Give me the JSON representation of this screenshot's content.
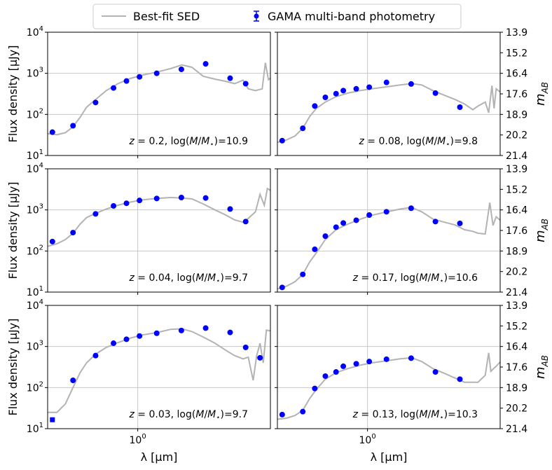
{
  "legend": {
    "sed_label": "Best-fit SED",
    "phot_label": "GAMA multi-band photometry"
  },
  "colors": {
    "sed": "#b3b3b3",
    "photometry": "#0000ff",
    "grid": "#c8c8c8"
  },
  "labels": {
    "ylabel": "Flux density [μJy]",
    "xlabel": "λ [μm]",
    "mab": "m",
    "mab_sub": "AB"
  },
  "chart_data": {
    "type": "scatter",
    "title": "",
    "xscale": "log",
    "yscale": "log",
    "xlim": [
      0.36,
      4.5
    ],
    "ylim": [
      10,
      10000
    ],
    "xticks": [
      {
        "value": 1,
        "base": "10",
        "exp": "0"
      }
    ],
    "yticks": [
      {
        "value": 10,
        "base": "10",
        "exp": "1"
      },
      {
        "value": 100,
        "base": "10",
        "exp": "2"
      },
      {
        "value": 1000,
        "base": "10",
        "exp": "3"
      },
      {
        "value": 10000,
        "base": "10",
        "exp": "4"
      }
    ],
    "secondary_yticks": [
      "13.9",
      "15.2",
      "16.4",
      "17.6",
      "18.9",
      "20.2",
      "21.4"
    ],
    "photometry_wavelengths": [
      0.38,
      0.48,
      0.62,
      0.76,
      0.88,
      1.02,
      1.24,
      1.64,
      2.16,
      2.85
    ],
    "panels": [
      {
        "z": "0.2",
        "logm": "10.9",
        "flux": [
          37,
          53,
          195,
          440,
          650,
          820,
          1000,
          1250,
          1700,
          760,
          560
        ],
        "wave": [
          0.38,
          0.48,
          0.62,
          0.76,
          0.88,
          1.02,
          1.24,
          1.64,
          2.16,
          2.85,
          3.4
        ],
        "sed": [
          [
            0.36,
            34
          ],
          [
            0.4,
            32
          ],
          [
            0.44,
            36
          ],
          [
            0.48,
            50
          ],
          [
            0.52,
            85
          ],
          [
            0.56,
            150
          ],
          [
            0.62,
            230
          ],
          [
            0.7,
            380
          ],
          [
            0.8,
            560
          ],
          [
            0.92,
            750
          ],
          [
            1.05,
            900
          ],
          [
            1.25,
            1080
          ],
          [
            1.45,
            1300
          ],
          [
            1.65,
            1600
          ],
          [
            1.85,
            1400
          ],
          [
            2.1,
            850
          ],
          [
            2.4,
            720
          ],
          [
            2.7,
            640
          ],
          [
            3.0,
            560
          ],
          [
            3.3,
            680
          ],
          [
            3.5,
            420
          ],
          [
            3.8,
            380
          ],
          [
            4.1,
            420
          ],
          [
            4.25,
            1800
          ],
          [
            4.4,
            700
          ],
          [
            4.5,
            760
          ]
        ]
      },
      {
        "z": "0.08",
        "logm": "9.8",
        "flux": [
          23,
          46,
          160,
          260,
          320,
          380,
          420,
          460,
          600,
          550,
          330,
          150
        ],
        "wave": [
          0.38,
          0.48,
          0.55,
          0.62,
          0.7,
          0.76,
          0.88,
          1.02,
          1.24,
          1.64,
          2.16,
          2.85
        ],
        "sed": [
          [
            0.36,
            21
          ],
          [
            0.4,
            24
          ],
          [
            0.44,
            30
          ],
          [
            0.48,
            46
          ],
          [
            0.52,
            90
          ],
          [
            0.56,
            140
          ],
          [
            0.62,
            200
          ],
          [
            0.7,
            270
          ],
          [
            0.8,
            330
          ],
          [
            0.92,
            380
          ],
          [
            1.05,
            420
          ],
          [
            1.25,
            470
          ],
          [
            1.45,
            520
          ],
          [
            1.65,
            560
          ],
          [
            1.85,
            520
          ],
          [
            2.1,
            380
          ],
          [
            2.4,
            290
          ],
          [
            2.7,
            230
          ],
          [
            3.0,
            180
          ],
          [
            3.3,
            130
          ],
          [
            3.5,
            160
          ],
          [
            3.8,
            200
          ],
          [
            3.95,
            110
          ],
          [
            4.1,
            500
          ],
          [
            4.2,
            140
          ],
          [
            4.3,
            420
          ],
          [
            4.5,
            350
          ]
        ]
      },
      {
        "z": "0.04",
        "logm": "9.7",
        "flux": [
          170,
          280,
          800,
          1250,
          1450,
          1700,
          1900,
          2000,
          1950,
          1050,
          520
        ],
        "wave": [
          0.38,
          0.48,
          0.62,
          0.76,
          0.88,
          1.02,
          1.24,
          1.64,
          2.16,
          2.85,
          3.4
        ],
        "sed": [
          [
            0.36,
            130
          ],
          [
            0.4,
            150
          ],
          [
            0.44,
            190
          ],
          [
            0.48,
            270
          ],
          [
            0.52,
            450
          ],
          [
            0.56,
            650
          ],
          [
            0.62,
            820
          ],
          [
            0.7,
            1050
          ],
          [
            0.8,
            1300
          ],
          [
            0.92,
            1550
          ],
          [
            1.05,
            1750
          ],
          [
            1.25,
            1900
          ],
          [
            1.45,
            2000
          ],
          [
            1.65,
            1950
          ],
          [
            1.85,
            1850
          ],
          [
            2.1,
            1400
          ],
          [
            2.4,
            1000
          ],
          [
            2.7,
            760
          ],
          [
            3.0,
            570
          ],
          [
            3.3,
            500
          ],
          [
            3.5,
            620
          ],
          [
            3.8,
            900
          ],
          [
            4.0,
            2400
          ],
          [
            4.2,
            1300
          ],
          [
            4.35,
            3300
          ],
          [
            4.5,
            3000
          ]
        ]
      },
      {
        "z": "0.17",
        "logm": "10.6",
        "flux": [
          13,
          27,
          110,
          230,
          380,
          480,
          560,
          750,
          900,
          1100,
          520,
          470
        ],
        "wave": [
          0.38,
          0.48,
          0.55,
          0.62,
          0.7,
          0.76,
          0.88,
          1.02,
          1.24,
          1.64,
          2.16,
          2.85
        ],
        "sed": [
          [
            0.36,
            12
          ],
          [
            0.4,
            14
          ],
          [
            0.44,
            18
          ],
          [
            0.48,
            27
          ],
          [
            0.52,
            55
          ],
          [
            0.56,
            90
          ],
          [
            0.62,
            190
          ],
          [
            0.7,
            330
          ],
          [
            0.8,
            450
          ],
          [
            0.92,
            590
          ],
          [
            1.05,
            740
          ],
          [
            1.25,
            900
          ],
          [
            1.45,
            1050
          ],
          [
            1.65,
            1150
          ],
          [
            1.85,
            900
          ],
          [
            2.1,
            600
          ],
          [
            2.4,
            500
          ],
          [
            2.7,
            430
          ],
          [
            3.0,
            330
          ],
          [
            3.3,
            300
          ],
          [
            3.5,
            270
          ],
          [
            3.8,
            260
          ],
          [
            4.0,
            1500
          ],
          [
            4.15,
            420
          ],
          [
            4.3,
            680
          ],
          [
            4.5,
            560
          ]
        ]
      },
      {
        "z": "0.03",
        "logm": "9.7",
        "flux": [
          16.5,
          150,
          600,
          1200,
          1500,
          1800,
          2100,
          2450,
          2800,
          2200,
          950,
          530
        ],
        "wave": [
          0.38,
          0.48,
          0.62,
          0.76,
          0.88,
          1.02,
          1.24,
          1.64,
          2.16,
          2.85,
          3.4,
          4.0
        ],
        "sed": [
          [
            0.36,
            25
          ],
          [
            0.4,
            25
          ],
          [
            0.44,
            40
          ],
          [
            0.48,
            100
          ],
          [
            0.52,
            230
          ],
          [
            0.56,
            400
          ],
          [
            0.62,
            650
          ],
          [
            0.7,
            950
          ],
          [
            0.8,
            1250
          ],
          [
            0.92,
            1600
          ],
          [
            1.05,
            1900
          ],
          [
            1.25,
            2200
          ],
          [
            1.45,
            2600
          ],
          [
            1.65,
            2700
          ],
          [
            1.85,
            2300
          ],
          [
            2.1,
            1700
          ],
          [
            2.4,
            1200
          ],
          [
            2.7,
            820
          ],
          [
            3.0,
            600
          ],
          [
            3.3,
            500
          ],
          [
            3.5,
            550
          ],
          [
            3.7,
            150
          ],
          [
            3.85,
            600
          ],
          [
            4.0,
            1200
          ],
          [
            4.15,
            400
          ],
          [
            4.3,
            2500
          ],
          [
            4.5,
            2400
          ]
        ]
      },
      {
        "z": "0.13",
        "logm": "10.3",
        "flux": [
          22,
          26,
          95,
          190,
          240,
          330,
          380,
          430,
          490,
          520,
          240,
          160
        ],
        "wave": [
          0.38,
          0.48,
          0.55,
          0.62,
          0.7,
          0.76,
          0.88,
          1.02,
          1.24,
          1.64,
          2.16,
          2.85
        ],
        "sed": [
          [
            0.36,
            17
          ],
          [
            0.4,
            18
          ],
          [
            0.44,
            21
          ],
          [
            0.48,
            28
          ],
          [
            0.52,
            55
          ],
          [
            0.56,
            90
          ],
          [
            0.62,
            160
          ],
          [
            0.7,
            230
          ],
          [
            0.8,
            290
          ],
          [
            0.92,
            350
          ],
          [
            1.05,
            400
          ],
          [
            1.25,
            450
          ],
          [
            1.45,
            500
          ],
          [
            1.65,
            530
          ],
          [
            1.85,
            430
          ],
          [
            2.1,
            290
          ],
          [
            2.4,
            220
          ],
          [
            2.7,
            170
          ],
          [
            3.0,
            135
          ],
          [
            3.3,
            135
          ],
          [
            3.5,
            135
          ],
          [
            3.8,
            200
          ],
          [
            3.95,
            700
          ],
          [
            4.05,
            250
          ],
          [
            4.3,
            330
          ],
          [
            4.5,
            420
          ]
        ]
      }
    ]
  }
}
